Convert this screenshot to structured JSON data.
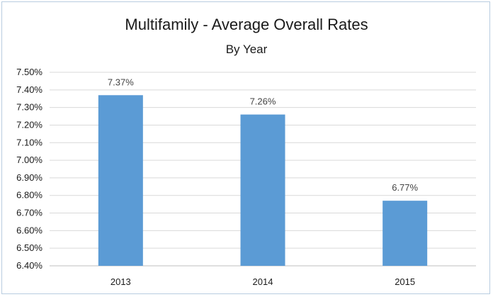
{
  "chart_data": {
    "type": "bar",
    "title": "Multifamily - Average Overall Rates",
    "subtitle": "By Year",
    "categories": [
      "2013",
      "2014",
      "2015"
    ],
    "values": [
      7.37,
      7.26,
      6.77
    ],
    "data_labels": [
      "7.37%",
      "7.26%",
      "6.77%"
    ],
    "ylim": [
      6.4,
      7.5
    ],
    "yticks": [
      6.4,
      6.5,
      6.6,
      6.7,
      6.8,
      6.9,
      7.0,
      7.1,
      7.2,
      7.3,
      7.4,
      7.5
    ],
    "ytick_labels": [
      "6.40%",
      "6.50%",
      "6.60%",
      "6.70%",
      "6.80%",
      "6.90%",
      "7.00%",
      "7.10%",
      "7.20%",
      "7.30%",
      "7.40%",
      "7.50%"
    ],
    "xlabel": "",
    "ylabel": "",
    "grid": true,
    "legend": "none",
    "colors": {
      "bar": "#5b9bd5",
      "grid": "#d9d9d9"
    }
  }
}
